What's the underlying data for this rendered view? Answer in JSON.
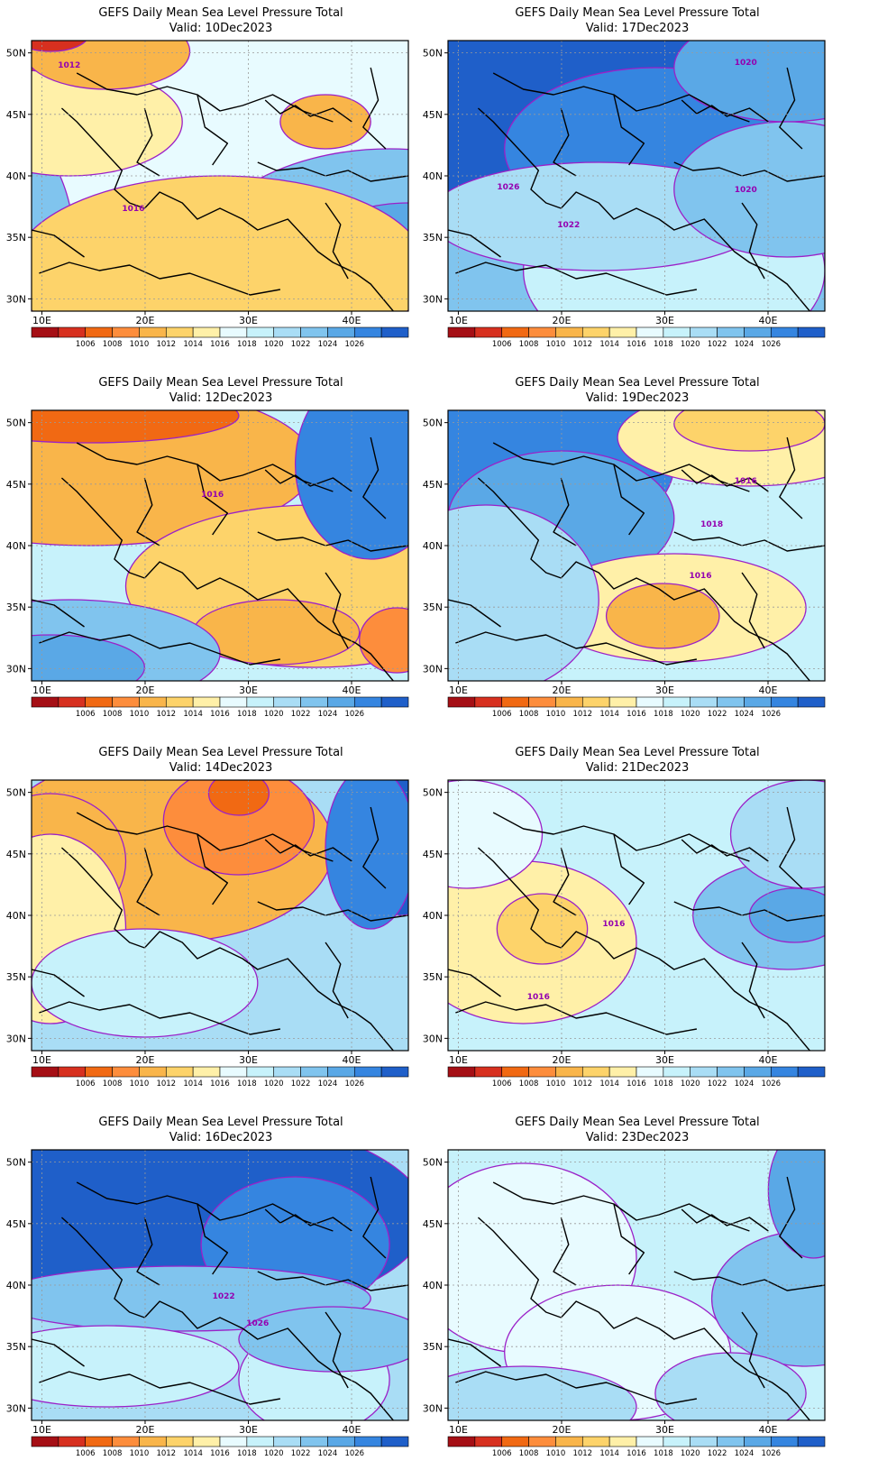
{
  "palette": [
    "#a50f15",
    "#d7301f",
    "#f16913",
    "#fd8d3c",
    "#f9b54a",
    "#fdd36a",
    "#fff0a8",
    "#e8fbff",
    "#c7f2fb",
    "#a9ddf5",
    "#80c4ee",
    "#5aa8e6",
    "#3585e0",
    "#1f5fc9"
  ],
  "colorbar_labels": [
    "1006",
    "1008",
    "1010",
    "1012",
    "1014",
    "1016",
    "1018",
    "1020",
    "1022",
    "1024",
    "1026"
  ],
  "x_ticks": [
    "10E",
    "20E",
    "30E",
    "40E"
  ],
  "y_ticks": [
    "50N",
    "45N",
    "40N",
    "35N",
    "30N"
  ],
  "panels": [
    {
      "title": "GEFS Daily Mean Sea Level Pressure Total",
      "valid": "Valid:  10Dec2023",
      "contour_labels": [
        "1012",
        "1016"
      ]
    },
    {
      "title": "GEFS Daily Mean Sea Level Pressure Total",
      "valid": "Valid:  17Dec2023",
      "contour_labels": [
        "1020",
        "1026",
        "1022",
        "1020"
      ]
    },
    {
      "title": "GEFS Daily Mean Sea Level Pressure Total",
      "valid": "Valid:  12Dec2023",
      "contour_labels": [
        "1016"
      ]
    },
    {
      "title": "GEFS Daily Mean Sea Level Pressure Total",
      "valid": "Valid:  19Dec2023",
      "contour_labels": [
        "1016",
        "1018",
        "1016"
      ]
    },
    {
      "title": "GEFS Daily Mean Sea Level Pressure Total",
      "valid": "Valid:  14Dec2023",
      "contour_labels": []
    },
    {
      "title": "GEFS Daily Mean Sea Level Pressure Total",
      "valid": "Valid:  21Dec2023",
      "contour_labels": [
        "1016",
        "1016"
      ]
    },
    {
      "title": "GEFS Daily Mean Sea Level Pressure Total",
      "valid": "Valid:  16Dec2023",
      "contour_labels": [
        "1022",
        "1026"
      ]
    },
    {
      "title": "GEFS Daily Mean Sea Level Pressure Total",
      "valid": "Valid:  23Dec2023",
      "contour_labels": []
    }
  ]
}
